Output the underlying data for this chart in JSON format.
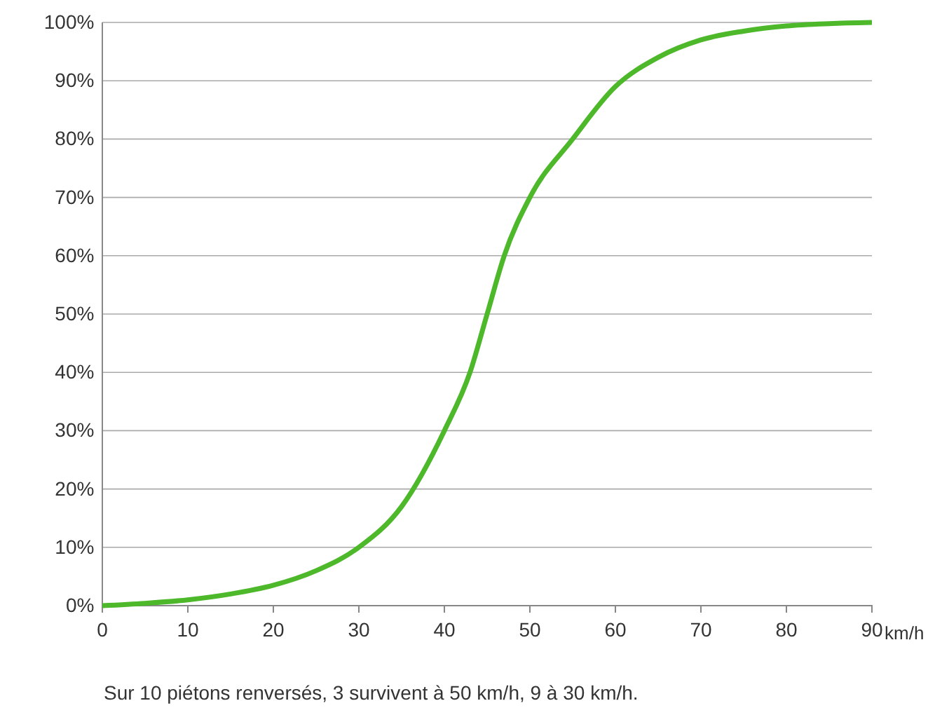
{
  "chart_data": {
    "type": "line",
    "xlabel": "km/h",
    "x": [
      0,
      5,
      10,
      15,
      20,
      25,
      30,
      35,
      40,
      43,
      45,
      47,
      50,
      55,
      60,
      65,
      70,
      75,
      80,
      85,
      90
    ],
    "series": [
      {
        "color": "#4cb82a",
        "values": [
          0,
          0.4,
          1,
          2,
          3.5,
          6,
          10,
          17,
          30,
          40,
          50,
          60,
          70,
          80,
          89,
          94,
          97,
          98.5,
          99.4,
          99.8,
          100
        ]
      }
    ],
    "xlim": [
      0,
      90
    ],
    "xticks": [
      0,
      10,
      20,
      30,
      40,
      50,
      60,
      70,
      80,
      90
    ],
    "ylim": [
      0,
      100
    ],
    "yticks": [
      {
        "value": 0,
        "label": "0%"
      },
      {
        "value": 10,
        "label": "10%"
      },
      {
        "value": 20,
        "label": "20%"
      },
      {
        "value": 30,
        "label": "30%"
      },
      {
        "value": 40,
        "label": "40%"
      },
      {
        "value": 50,
        "label": "50%"
      },
      {
        "value": 60,
        "label": "60%"
      },
      {
        "value": 70,
        "label": "70%"
      },
      {
        "value": 80,
        "label": "80%"
      },
      {
        "value": 90,
        "label": "90%"
      },
      {
        "value": 100,
        "label": "100%"
      }
    ],
    "grid": "y",
    "marker": "none",
    "line_style": "solid",
    "annotations": [
      "Sur 10 piétons renversés, 3 survivent à 50 km/h, 9 à 30 km/h."
    ]
  }
}
